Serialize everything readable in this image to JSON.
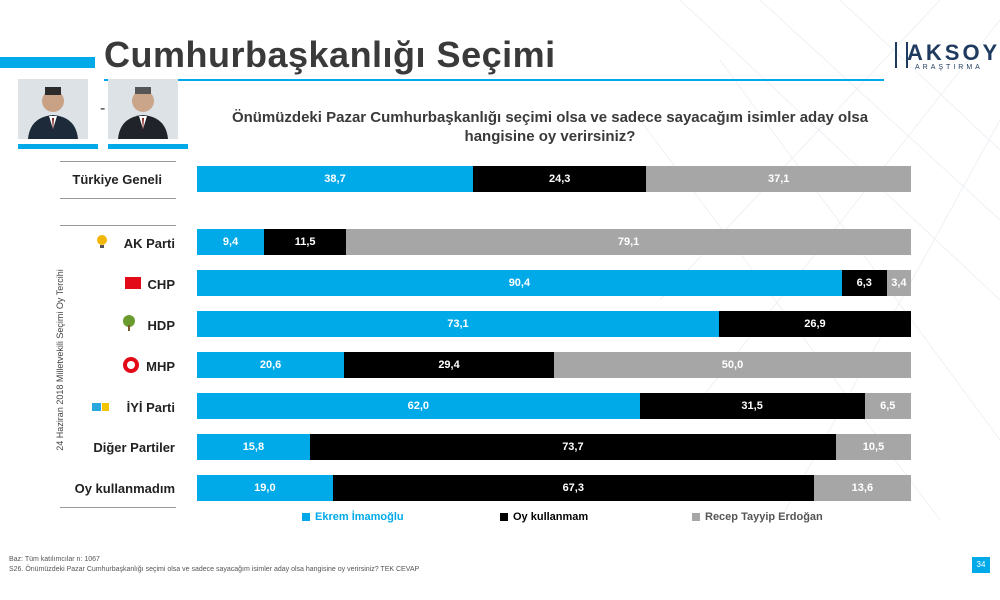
{
  "header": {
    "title": "Cumhurbaşkanlığı Seçimi",
    "dash": "-",
    "logo_main": "AKSOY",
    "logo_sub": "ARAŞTIRMA"
  },
  "question": "Önümüzdeki Pazar Cumhurbaşkanlığı seçimi olsa ve sadece sayacağım isimler aday olsa hangisine oy verirsiniz?",
  "side_label": "24 Haziran 2018 Milletvekili Seçimi Oy Tercihi",
  "colors": {
    "imamoglu": "#00a9e8",
    "oy_kullanmam": "#000000",
    "erdogan": "#a6a6a6"
  },
  "chart_data": {
    "type": "bar",
    "orientation": "horizontal",
    "stacked": true,
    "categories": [
      "Türkiye Geneli",
      "AK Parti",
      "CHP",
      "HDP",
      "MHP",
      "İYİ Parti",
      "Diğer Partiler",
      "Oy kullanmadım"
    ],
    "series": [
      {
        "name": "Ekrem İmamoğlu",
        "values": [
          38.7,
          9.4,
          90.4,
          73.1,
          20.6,
          62.0,
          15.8,
          19.0
        ],
        "labels": [
          "38,7",
          "9,4",
          "90,4",
          "73,1",
          "20,6",
          "62,0",
          "15,8",
          "19,0"
        ]
      },
      {
        "name": "Oy kullanmam",
        "values": [
          24.3,
          11.5,
          6.3,
          26.9,
          29.4,
          31.5,
          73.7,
          67.3
        ],
        "labels": [
          "24,3",
          "11,5",
          "6,3",
          "26,9",
          "29,4",
          "31,5",
          "73,7",
          "67,3"
        ]
      },
      {
        "name": "Recep Tayyip Erdoğan",
        "values": [
          37.1,
          79.1,
          3.4,
          0.0,
          50.0,
          6.5,
          10.5,
          13.6
        ],
        "labels": [
          "37,1",
          "79,1",
          "3,4",
          "",
          "50,0",
          "6,5",
          "10,5",
          "13,6"
        ]
      }
    ],
    "xlim": [
      0,
      100
    ],
    "legend_position": "bottom"
  },
  "footer": {
    "note1": "Baz: Tüm katılımcılar n: 1067",
    "note2": "S26. Önümüzdeki Pazar Cumhurbaşkanlığı seçimi olsa ve sadece sayacağım isimler aday olsa hangisine oy verirsiniz? TEK CEVAP",
    "page_number": "34"
  }
}
